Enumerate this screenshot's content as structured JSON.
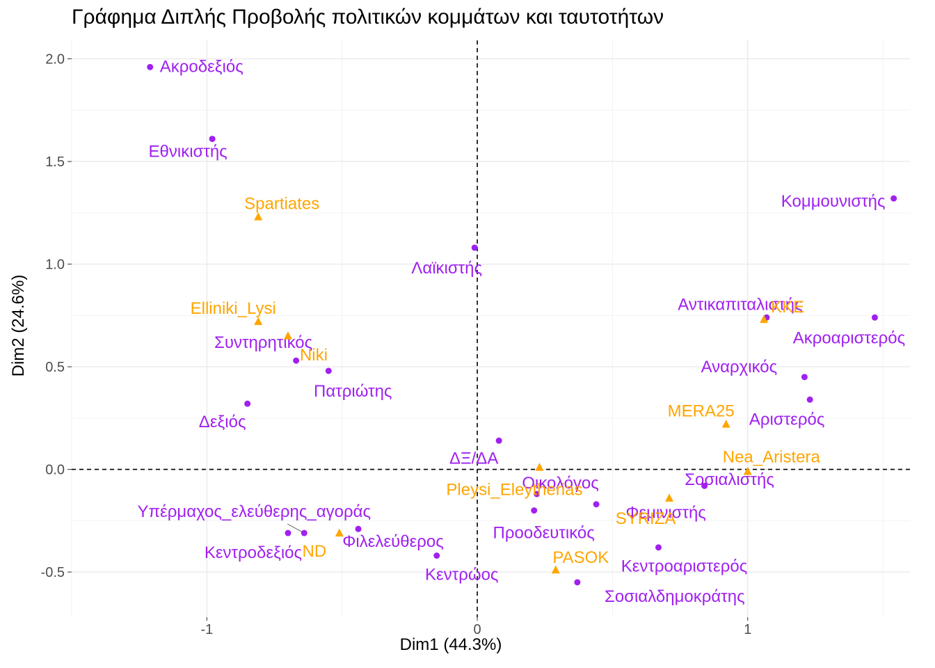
{
  "chart_data": {
    "type": "scatter",
    "title": "Γράφημα Διπλής Προβολής πολιτικών κομμάτων και ταυτοτήτων",
    "xlabel": "Dim1 (44.3%)",
    "ylabel": "Dim2 (24.6%)",
    "xlim": [
      -1.5,
      1.6
    ],
    "ylim": [
      -0.72,
      2.09
    ],
    "x_ticks": [
      -1,
      0,
      1
    ],
    "x_tick_labels": [
      "-1",
      "0",
      "1"
    ],
    "y_ticks": [
      -0.5,
      0.0,
      0.5,
      1.0,
      1.5,
      2.0
    ],
    "y_tick_labels": [
      "-0.5",
      "0.0",
      "0.5",
      "1.0",
      "1.5",
      "2.0"
    ],
    "grid": true,
    "reference_lines": {
      "x": 0,
      "y": 0
    },
    "colors": {
      "identities": "#a020f0",
      "parties": "#ffa500"
    },
    "series": [
      {
        "marker": "circle",
        "color": "#a020f0",
        "points": [
          {
            "label": "Ακροδεξιός",
            "x": -1.21,
            "y": 1.96
          },
          {
            "label": "Εθνικιστής",
            "x": -0.98,
            "y": 1.61
          },
          {
            "label": "Λαϊκιστής",
            "x": -0.01,
            "y": 1.08
          },
          {
            "label": "Κομμουνιστής",
            "x": 1.54,
            "y": 1.32
          },
          {
            "label": "Αντικαπιταλιστής",
            "x": 1.07,
            "y": 0.74
          },
          {
            "label": "Ακροαριστερός",
            "x": 1.47,
            "y": 0.74
          },
          {
            "label": "Αναρχικός",
            "x": 1.21,
            "y": 0.45
          },
          {
            "label": "Αριστερός",
            "x": 1.23,
            "y": 0.34
          },
          {
            "label": "Συντηρητικός",
            "x": -0.67,
            "y": 0.53
          },
          {
            "label": "Πατριώτης",
            "x": -0.55,
            "y": 0.48
          },
          {
            "label": "Δεξιός",
            "x": -0.85,
            "y": 0.32
          },
          {
            "label": "ΔΞ/ΔΑ",
            "x": 0.08,
            "y": 0.14
          },
          {
            "label": "Σοσιαλιστής",
            "x": 0.84,
            "y": -0.08
          },
          {
            "label": "Οικολόγος",
            "x": 0.22,
            "y": -0.12
          },
          {
            "label": "Φεμινιστής",
            "x": 0.44,
            "y": -0.17
          },
          {
            "label": "Προοδευτικός",
            "x": 0.21,
            "y": -0.2
          },
          {
            "label": "Υπέρμαχος_ελεύθερης_αγοράς",
            "x": -0.64,
            "y": -0.31
          },
          {
            "label": "Κεντροδεξιός",
            "x": -0.7,
            "y": -0.31
          },
          {
            "label": "Φιλελεύθερος",
            "x": -0.44,
            "y": -0.29
          },
          {
            "label": "Κεντροαριστερός",
            "x": 0.67,
            "y": -0.38
          },
          {
            "label": "Κεντρώος",
            "x": -0.15,
            "y": -0.42
          },
          {
            "label": "Σοσιαλδημοκράτης",
            "x": 0.37,
            "y": -0.55
          }
        ]
      },
      {
        "marker": "triangle",
        "color": "#ffa500",
        "points": [
          {
            "label": "Spartiates",
            "x": -0.81,
            "y": 1.23
          },
          {
            "label": "Elliniki_Lysi",
            "x": -0.81,
            "y": 0.72
          },
          {
            "label": "Niki",
            "x": -0.7,
            "y": 0.65
          },
          {
            "label": "KKE",
            "x": 1.06,
            "y": 0.73
          },
          {
            "label": "MERA25",
            "x": 0.92,
            "y": 0.22
          },
          {
            "label": "Nea_Aristera",
            "x": 1.0,
            "y": -0.01
          },
          {
            "label": "Pleysi_Eleytherias",
            "x": 0.23,
            "y": 0.01
          },
          {
            "label": "SYRIZA",
            "x": 0.71,
            "y": -0.14
          },
          {
            "label": "ND",
            "x": -0.51,
            "y": -0.31
          },
          {
            "label": "PASOK",
            "x": 0.29,
            "y": -0.49
          }
        ]
      }
    ]
  }
}
